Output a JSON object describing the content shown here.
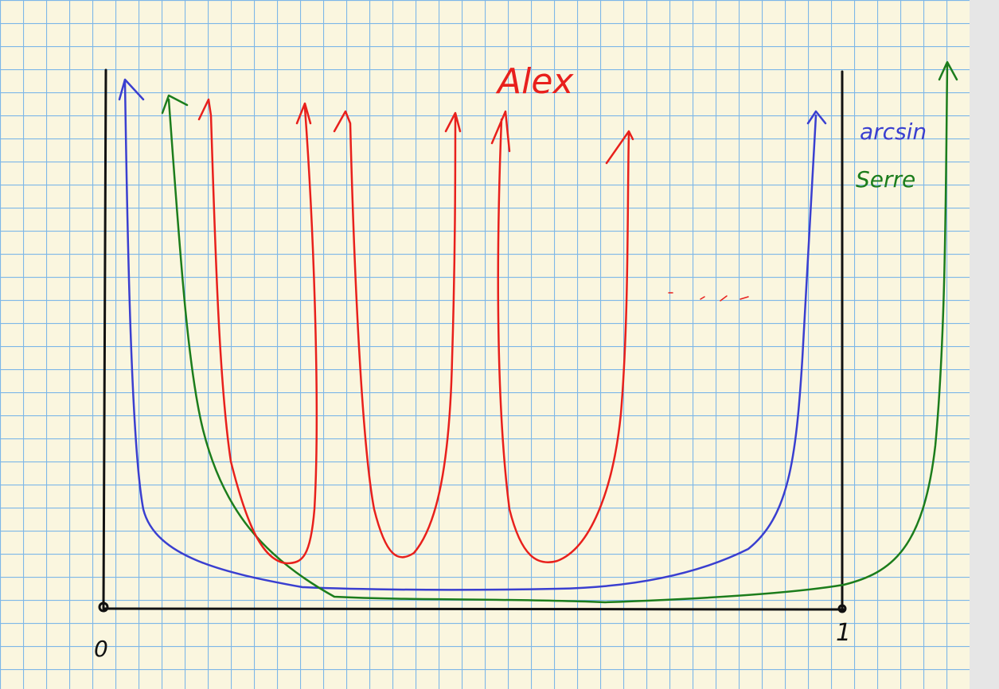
{
  "title": "Alex",
  "legend": [
    "arcsin",
    "Serre"
  ],
  "axis_labels": [
    "0",
    "1"
  ]
}
